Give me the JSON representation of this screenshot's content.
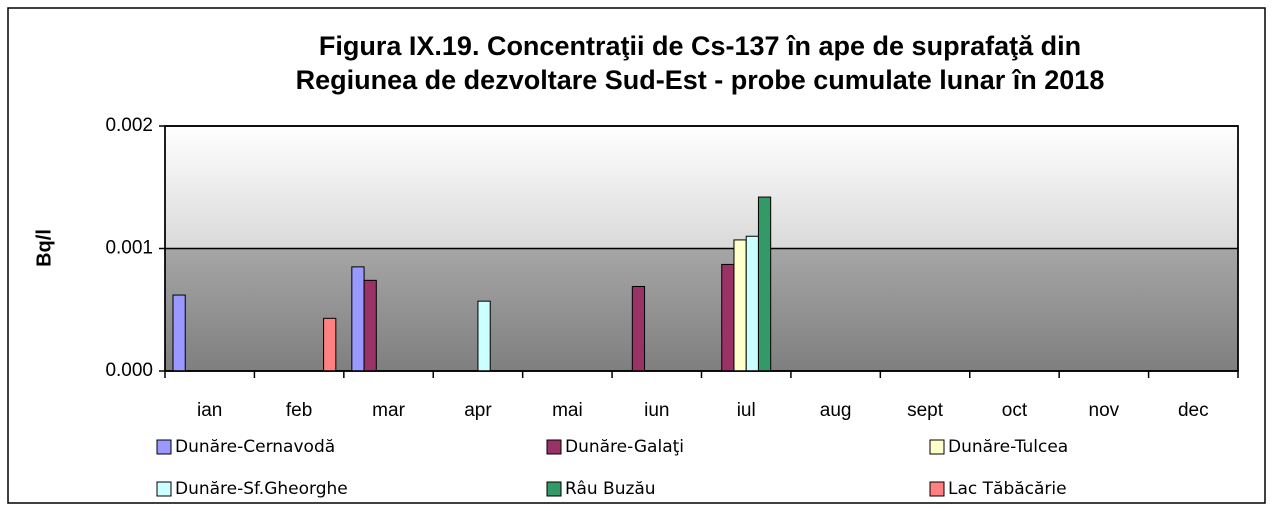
{
  "chart_data": {
    "type": "bar",
    "title": "Figura IX.19. Concentraţii de Cs-137 în ape de suprafaţă din Regiunea de dezvoltare Sud-Est - probe cumulate lunar în 2018",
    "y_label": "Bq/l",
    "categories": [
      "ian",
      "feb",
      "mar",
      "apr",
      "mai",
      "iun",
      "iul",
      "aug",
      "sept",
      "oct",
      "nov",
      "dec"
    ],
    "series": [
      {
        "name": "Dunăre-Cernavodă",
        "color": "#9999ff",
        "values": [
          0.00062,
          null,
          0.00085,
          null,
          null,
          null,
          null,
          null,
          null,
          null,
          null,
          null
        ]
      },
      {
        "name": "Dunăre-Galaţi",
        "color": "#993366",
        "values": [
          null,
          null,
          0.00074,
          null,
          null,
          0.00069,
          0.00087,
          null,
          null,
          null,
          null,
          null
        ]
      },
      {
        "name": "Dunăre-Tulcea",
        "color": "#ffffcc",
        "values": [
          null,
          null,
          null,
          null,
          null,
          null,
          0.00107,
          null,
          null,
          null,
          null,
          null
        ]
      },
      {
        "name": "Dunăre-Sf.Gheorghe",
        "color": "#ccffff",
        "values": [
          null,
          null,
          null,
          0.00057,
          null,
          null,
          0.0011,
          null,
          null,
          null,
          null,
          null
        ]
      },
      {
        "name": "Râu Buzău",
        "color": "#339966",
        "values": [
          null,
          null,
          null,
          null,
          null,
          null,
          0.00142,
          null,
          null,
          null,
          null,
          null
        ]
      },
      {
        "name": "Lac Tăbăcărie",
        "color": "#ff8080",
        "values": [
          null,
          0.00043,
          null,
          null,
          null,
          null,
          null,
          null,
          null,
          null,
          null,
          null
        ]
      }
    ],
    "ylim": [
      0,
      0.002
    ],
    "yticks": [
      {
        "value": 0,
        "label": "0.000"
      },
      {
        "value": 0.001,
        "label": "0.001"
      },
      {
        "value": 0.002,
        "label": "0.002"
      }
    ],
    "grid": true,
    "legend": "bottom"
  }
}
